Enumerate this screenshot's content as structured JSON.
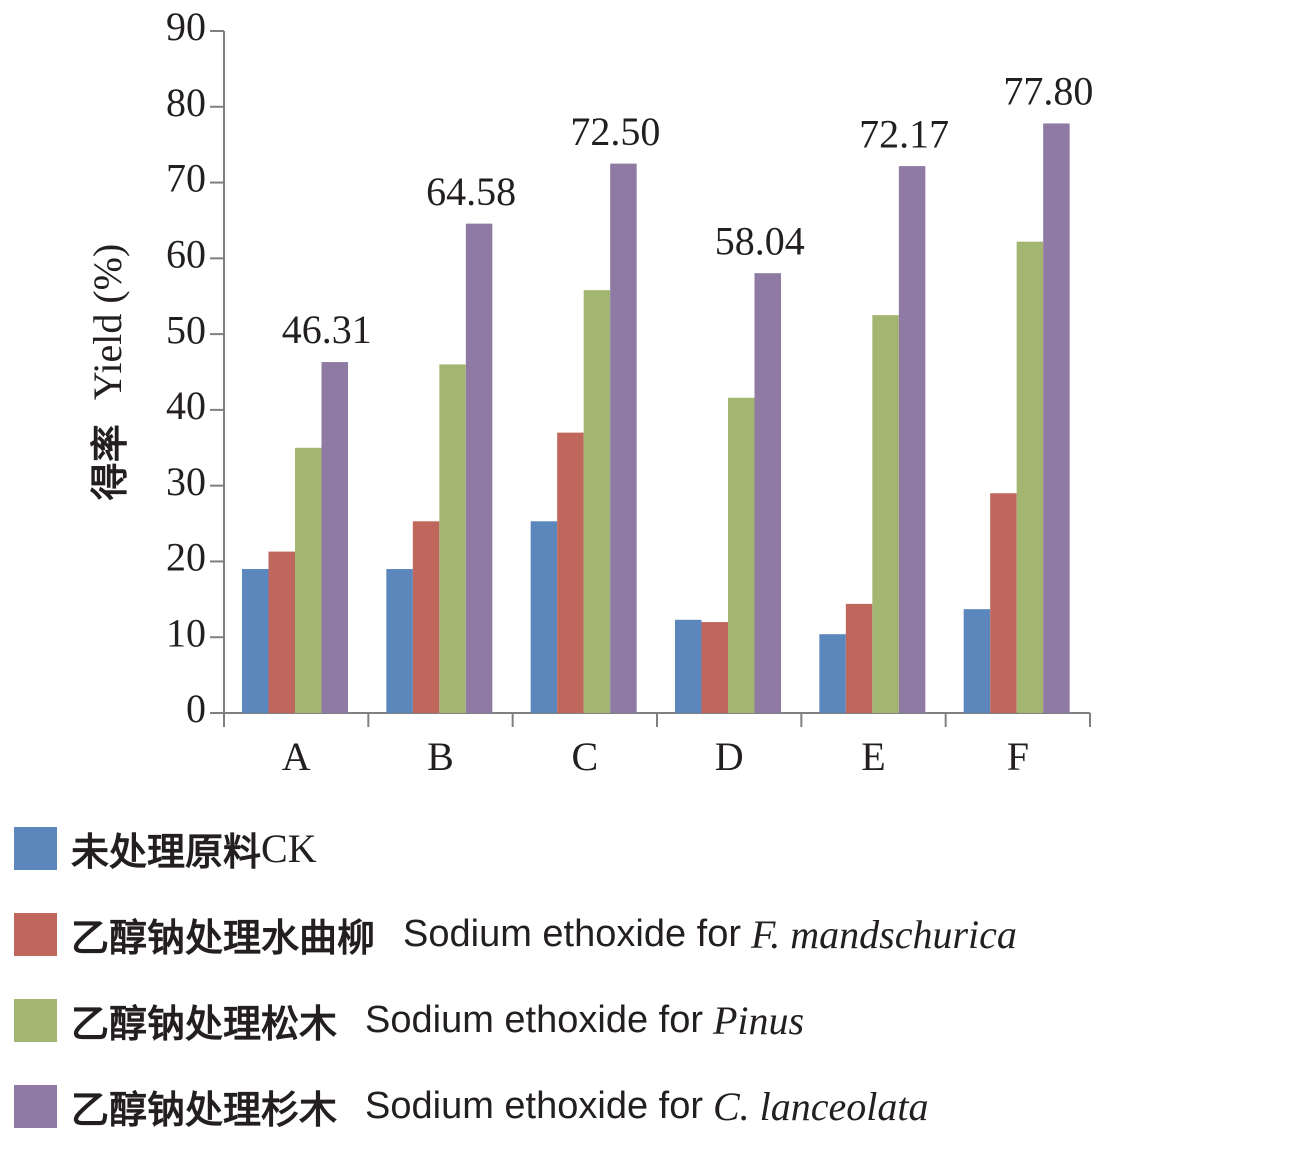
{
  "chart_data": {
    "type": "bar",
    "categories": [
      "A",
      "B",
      "C",
      "D",
      "E",
      "F"
    ],
    "ylabel_cn": "得率",
    "ylabel_en": "Yield (%)",
    "ylim": [
      0,
      90
    ],
    "yticks": [
      0,
      10,
      20,
      30,
      40,
      50,
      60,
      70,
      80,
      90
    ],
    "grid": false,
    "legend_position": "bottom",
    "series": [
      {
        "name_cn": "未处理原料",
        "name_ck": "CK",
        "name_en": "",
        "name_species": "",
        "color": "#5b87bd",
        "values": [
          19.0,
          19.0,
          25.3,
          12.3,
          10.4,
          13.7
        ],
        "data_labels": []
      },
      {
        "name_cn": "乙醇钠处理水曲柳",
        "name_ck": "",
        "name_en": "Sodium ethoxide for",
        "name_species": "F. mandschurica",
        "color": "#c0675d",
        "values": [
          21.3,
          25.3,
          37.0,
          12.0,
          14.4,
          29.0
        ],
        "data_labels": []
      },
      {
        "name_cn": "乙醇钠处理松木",
        "name_ck": "",
        "name_en": "Sodium ethoxide for",
        "name_species": "Pinus",
        "color": "#a2b672",
        "values": [
          35.0,
          46.0,
          55.8,
          41.6,
          52.5,
          62.2
        ],
        "data_labels": []
      },
      {
        "name_cn": "乙醇钠处理杉木",
        "name_ck": "",
        "name_en": "Sodium ethoxide for",
        "name_species": "C. lanceolata",
        "color": "#8e7aa3",
        "values": [
          46.31,
          64.58,
          72.5,
          58.04,
          72.17,
          77.8
        ],
        "data_labels": [
          "46.31",
          "64.58",
          "72.50",
          "58.04",
          "72.17",
          "77.80"
        ]
      }
    ]
  }
}
